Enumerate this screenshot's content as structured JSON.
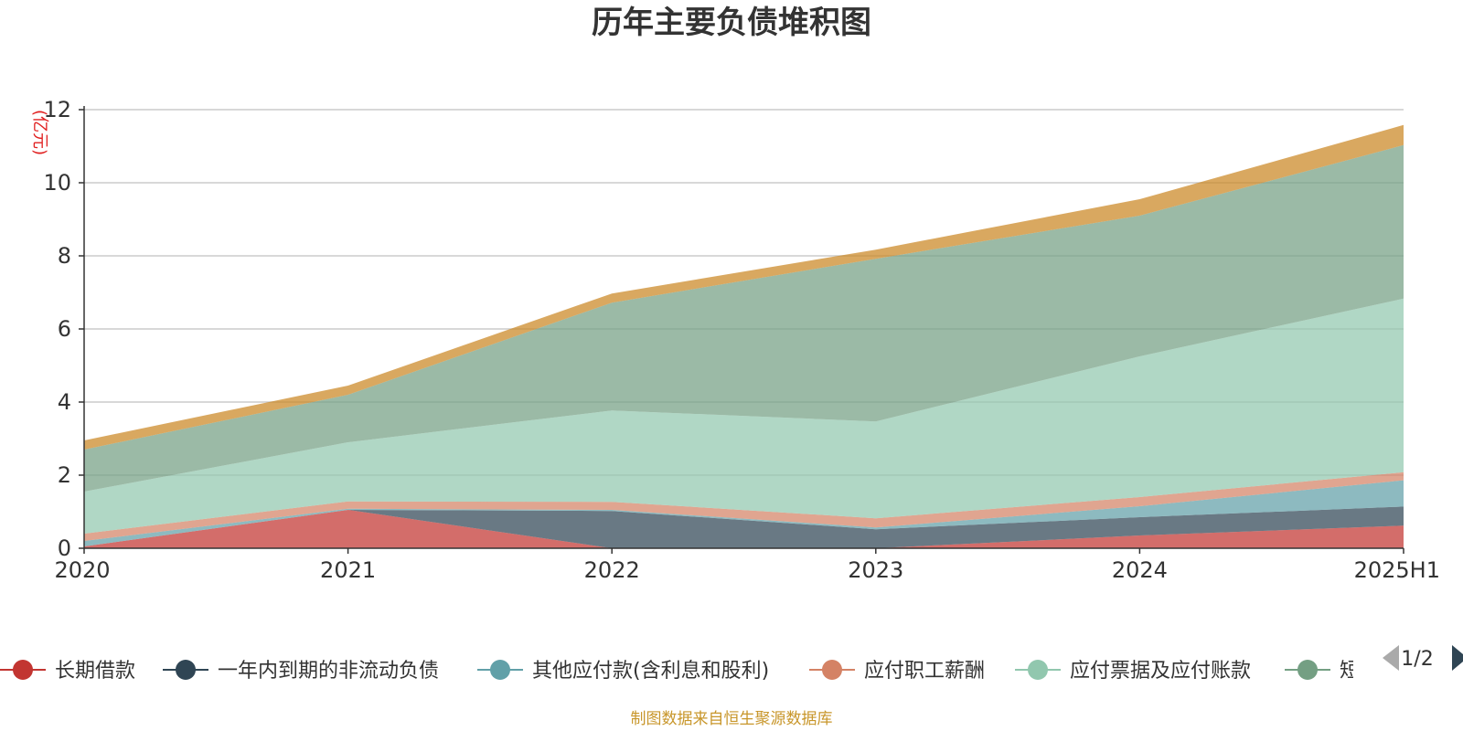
{
  "title": "历年主要负债堆积图",
  "source": "制图数据来自恒生聚源数据库",
  "pager": "1/2",
  "chart_data": {
    "type": "area",
    "stacked": true,
    "title": "历年主要负债堆积图",
    "ylabel": "(亿元)",
    "xlabel": "",
    "categories": [
      "2020",
      "2021",
      "2022",
      "2023",
      "2024",
      "2025H1"
    ],
    "ylim": [
      0,
      12
    ],
    "yticks": [
      0,
      2,
      4,
      6,
      8,
      10,
      12
    ],
    "grid": true,
    "legend_position": "bottom",
    "series": [
      {
        "name": "长期借款",
        "color": "#c23531",
        "values": [
          0.05,
          1.05,
          0.0,
          0.0,
          0.35,
          0.62
        ]
      },
      {
        "name": "一年内到期的非流动负债",
        "color": "#2f4554",
        "values": [
          0.0,
          0.0,
          1.02,
          0.52,
          0.5,
          0.52
        ]
      },
      {
        "name": "其他应付款(含利息和股利)",
        "color": "#61a0a8",
        "values": [
          0.15,
          0.03,
          0.03,
          0.05,
          0.3,
          0.72
        ]
      },
      {
        "name": "应付职工薪酬",
        "color": "#d48265",
        "values": [
          0.2,
          0.2,
          0.22,
          0.25,
          0.25,
          0.22
        ]
      },
      {
        "name": "应付票据及应付账款",
        "color": "#91c7ae",
        "values": [
          1.15,
          1.62,
          2.5,
          2.65,
          3.85,
          4.75
        ]
      },
      {
        "name": "短期借款",
        "color": "#749f83",
        "values": [
          1.15,
          1.3,
          2.95,
          4.45,
          3.85,
          4.2
        ]
      },
      {
        "name": "",
        "color": "#ca8622",
        "values": [
          0.25,
          0.25,
          0.25,
          0.25,
          0.45,
          0.55
        ]
      }
    ]
  }
}
